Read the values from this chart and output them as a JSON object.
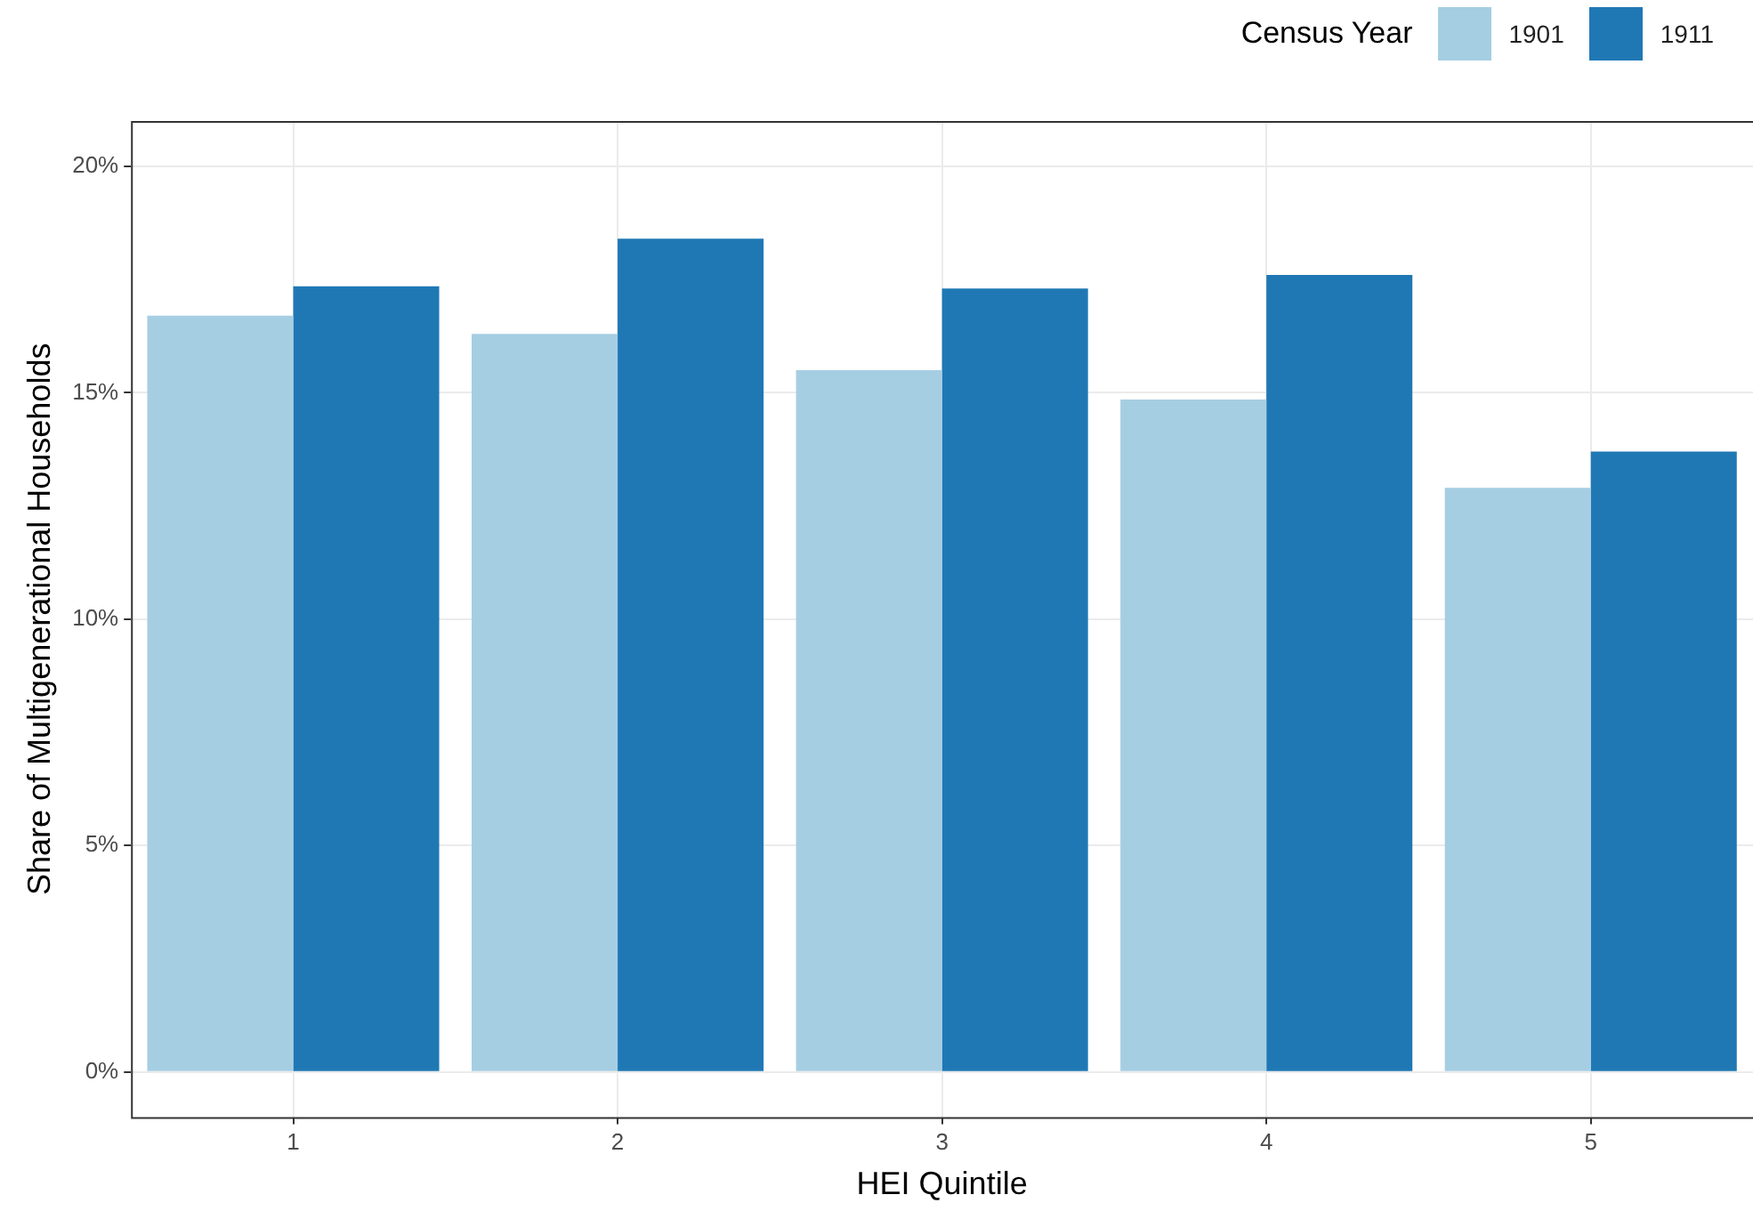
{
  "chart_data": {
    "type": "bar",
    "xlabel": "HEI Quintile",
    "ylabel": "Share of Multigenerational Households",
    "legend_title": "Census Year",
    "legend": "top right",
    "grid": true,
    "categories": [
      "1",
      "2",
      "3",
      "4",
      "5"
    ],
    "series": [
      {
        "name": "1901",
        "color": "#a6cee3",
        "values": [
          16.7,
          16.3,
          15.5,
          14.85,
          12.9
        ]
      },
      {
        "name": "1911",
        "color": "#1f78b4",
        "values": [
          17.35,
          18.4,
          17.3,
          17.6,
          13.7
        ]
      }
    ],
    "ylim": [
      -1,
      21
    ],
    "yticks": [
      {
        "value": 0,
        "label": "0%"
      },
      {
        "value": 5,
        "label": "5%"
      },
      {
        "value": 10,
        "label": "10%"
      },
      {
        "value": 15,
        "label": "15%"
      },
      {
        "value": 20,
        "label": "20%"
      }
    ]
  }
}
